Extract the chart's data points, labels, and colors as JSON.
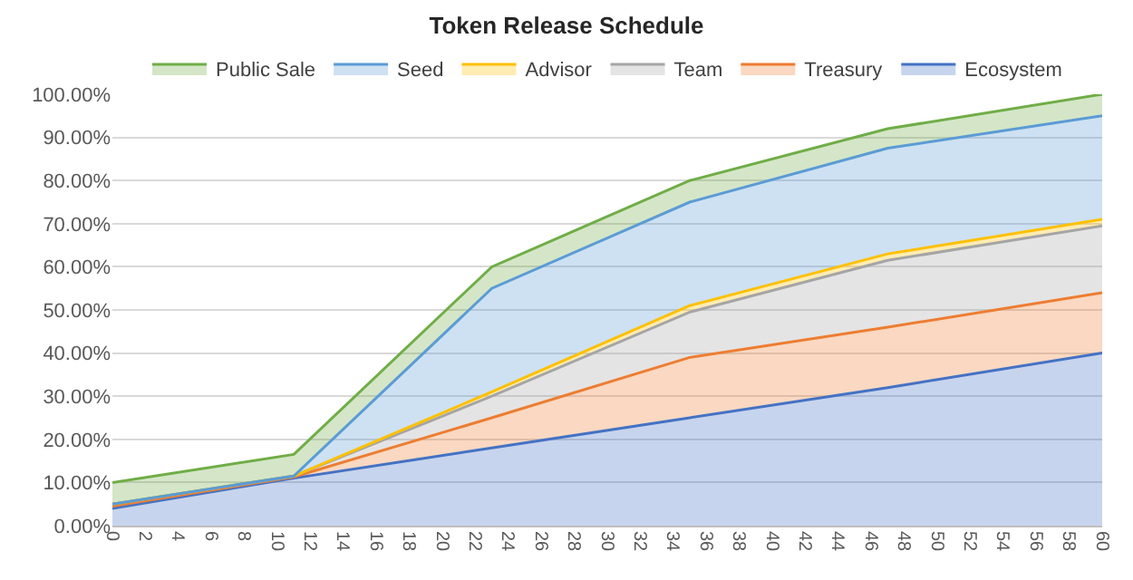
{
  "chart_data": {
    "type": "area",
    "title": "Token Release Schedule",
    "stacked": true,
    "x": [
      0,
      11,
      23,
      35,
      47,
      60
    ],
    "series": [
      {
        "name": "Ecosystem",
        "color": "#4472c4",
        "values": [
          4,
          11,
          18,
          25,
          32,
          40
        ]
      },
      {
        "name": "Treasury",
        "color": "#ed7d31",
        "values": [
          0.5,
          0.3,
          7,
          14,
          14,
          14
        ]
      },
      {
        "name": "Team",
        "color": "#a5a5a5",
        "values": [
          0.5,
          0.2,
          5,
          10.5,
          15.5,
          15.5
        ]
      },
      {
        "name": "Advisor",
        "color": "#ffc000",
        "values": [
          0,
          0,
          1,
          1.5,
          1.5,
          1.5
        ]
      },
      {
        "name": "Seed",
        "color": "#5b9bd5",
        "values": [
          0,
          0,
          24,
          24,
          24.5,
          24
        ]
      },
      {
        "name": "Public Sale",
        "color": "#70ad47",
        "values": [
          5,
          5,
          5,
          5,
          4.5,
          5
        ]
      }
    ],
    "xlim": [
      0,
      60
    ],
    "xticks": [
      0,
      2,
      4,
      6,
      8,
      10,
      12,
      14,
      16,
      18,
      20,
      22,
      24,
      26,
      28,
      30,
      32,
      34,
      36,
      38,
      40,
      42,
      44,
      46,
      48,
      50,
      52,
      54,
      56,
      58,
      60
    ],
    "ylim": [
      0,
      100
    ],
    "yticks": [
      {
        "value": 0,
        "label": "0.00%"
      },
      {
        "value": 10,
        "label": "10.00%"
      },
      {
        "value": 20,
        "label": "20.00%"
      },
      {
        "value": 30,
        "label": "30.00%"
      },
      {
        "value": 40,
        "label": "40.00%"
      },
      {
        "value": 50,
        "label": "50.00%"
      },
      {
        "value": 60,
        "label": "60.00%"
      },
      {
        "value": 70,
        "label": "70.00%"
      },
      {
        "value": 80,
        "label": "80.00%"
      },
      {
        "value": 90,
        "label": "90.00%"
      },
      {
        "value": 100,
        "label": "100.00%"
      }
    ],
    "grid": "y",
    "legend": "top"
  }
}
